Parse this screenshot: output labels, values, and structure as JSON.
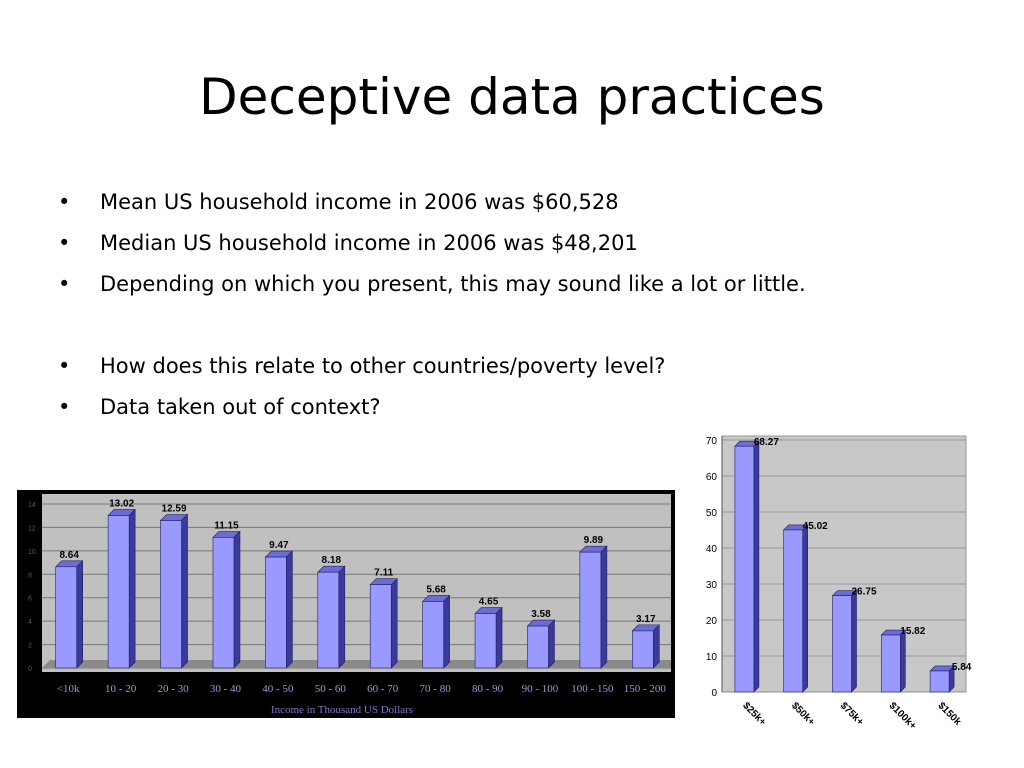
{
  "slide": {
    "title": "Deceptive data practices",
    "bullets": [
      "Mean US household income in 2006 was $60,528",
      "Median US household income in 2006 was $48,201",
      "Depending on which you present, this may sound like a lot or little.",
      "How does this relate to other countries/poverty level?",
      "Data taken out of context?"
    ],
    "bullet_symbol": "•"
  },
  "chart_data": [
    {
      "type": "bar",
      "categories": [
        "<10k",
        "10 - 20",
        "20 - 30",
        "30 - 40",
        "40 - 50",
        "50 - 60",
        "60 - 70",
        "70 - 80",
        "80 - 90",
        "90 - 100",
        "100 - 150",
        "150 - 200"
      ],
      "values": [
        8.64,
        13.02,
        12.59,
        11.15,
        9.47,
        8.18,
        7.11,
        5.68,
        4.65,
        3.58,
        9.89,
        3.17
      ],
      "data_labels": [
        "8.64",
        "13.02",
        "12.59",
        "11.15",
        "9.47",
        "8.18",
        "7.11",
        "5.68",
        "4.65",
        "3.58",
        "9.89",
        "3.17"
      ],
      "xlabel": "Income in Thousand US Dollars",
      "ylabel": "",
      "ylim": [
        0,
        14
      ],
      "grid": true,
      "colors": {
        "bar_front": "#9999ff",
        "bar_side": "#3a3a99",
        "bar_top": "#6c6cd6",
        "plot_bg": "#c0c0c0",
        "frame": "#000000",
        "grid": "#777777",
        "label": "#000000",
        "axis_text": "#9a9ad9"
      }
    },
    {
      "type": "bar",
      "categories": [
        "$25k+",
        "$50k+",
        "$75k+",
        "$100k+",
        "$150k"
      ],
      "values": [
        68.27,
        45.02,
        26.75,
        15.82,
        5.84
      ],
      "data_labels": [
        "68.27",
        "45.02",
        "26.75",
        "15.82",
        "5.84"
      ],
      "xlabel": "",
      "ylabel": "",
      "ylim": [
        0,
        70
      ],
      "yticks": [
        "0",
        "10",
        "20",
        "30",
        "40",
        "50",
        "60",
        "70"
      ],
      "grid": true,
      "colors": {
        "bar_front": "#9999ff",
        "bar_side": "#3a3a99",
        "bar_top": "#6c6cd6",
        "plot_bg": "#c8c8c8",
        "frame": "#ffffff",
        "grid": "#888888",
        "label": "#000000",
        "axis_text": "#000000"
      }
    }
  ]
}
